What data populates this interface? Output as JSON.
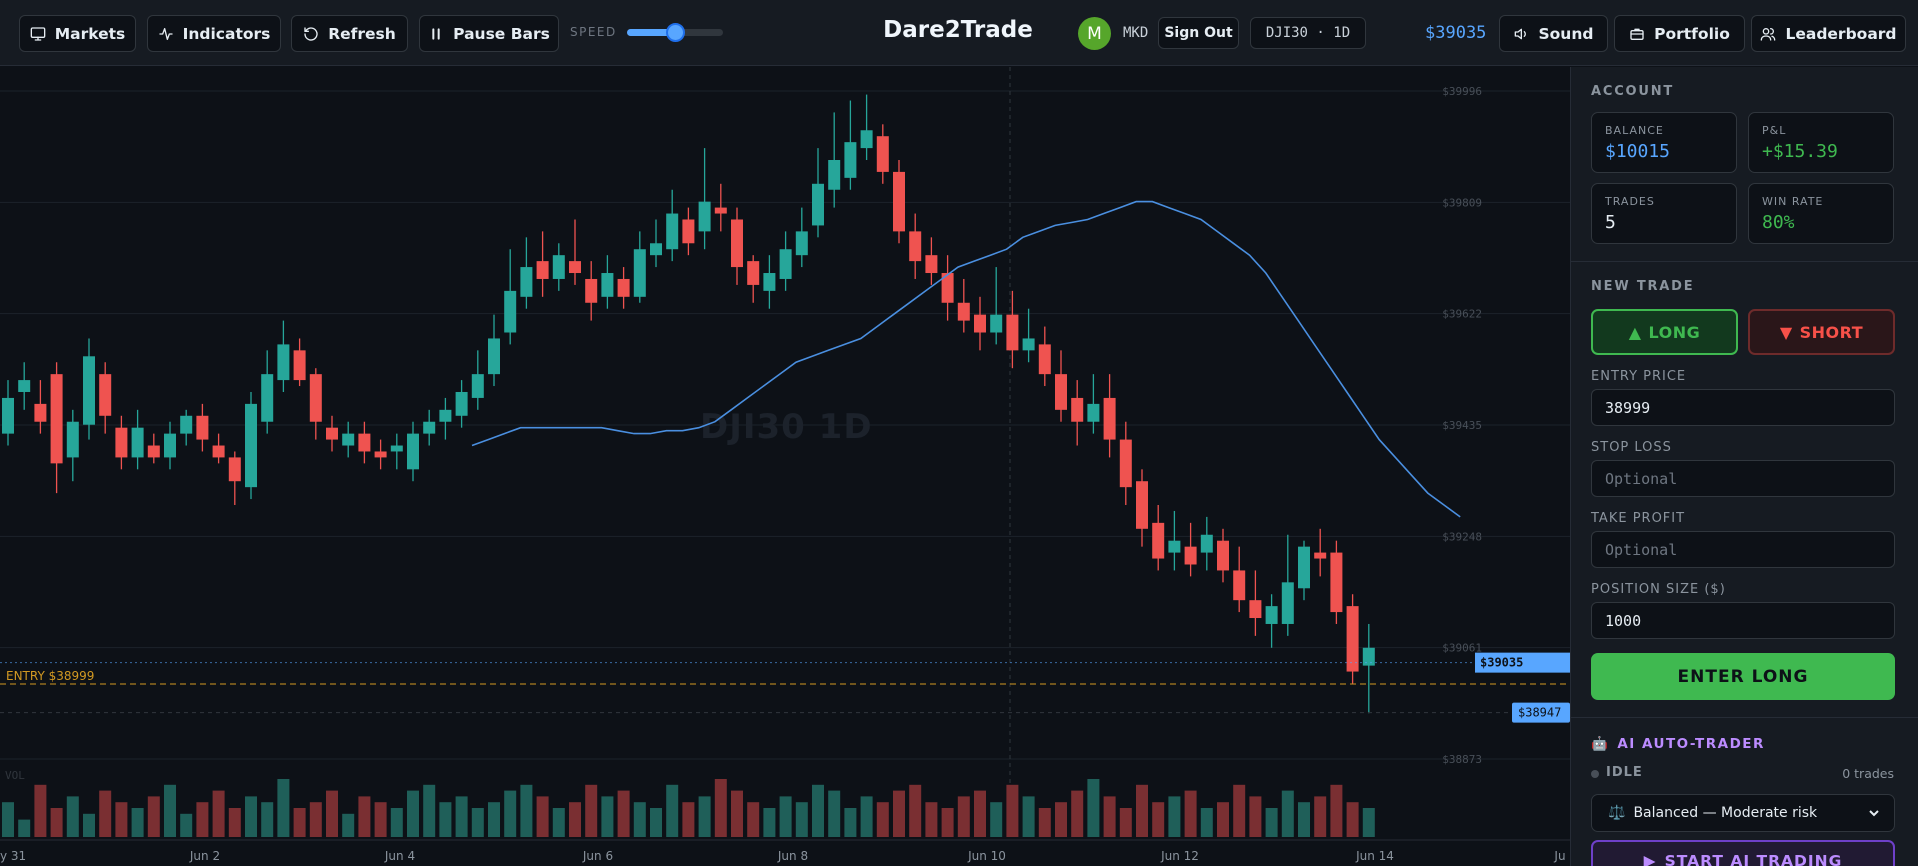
{
  "header": {
    "markets_label": "Markets",
    "indicators_label": "Indicators",
    "refresh_label": "Refresh",
    "pause_label": "Pause Bars",
    "speed_label": "SPEED",
    "speed_value": 0.5,
    "app_title": "Dare2Trade",
    "avatar_letter": "M",
    "username": "MKD",
    "signout_label": "Sign Out",
    "symbol": "DJI30 · 1D",
    "current_price": "$39035",
    "sound_label": "Sound",
    "portfolio_label": "Portfolio",
    "leaderboard_label": "Leaderboard"
  },
  "chart": {
    "watermark": "DJI30 1D",
    "entry_label": "ENTRY $38999",
    "current_price_tag": "$39035",
    "crosshair_price_tag": "$38947",
    "volume_label": "VOL",
    "colors": {
      "up": "#26a69a",
      "down": "#ef5350",
      "ma": "#4a8fe0",
      "entry": "#d29922",
      "price": "#58a6ff",
      "vol_up": "#1f5f59",
      "vol_down": "#7a2f32"
    },
    "price_ticks": [
      "$39996",
      "$39809",
      "$39622",
      "$39435",
      "$39248",
      "$39061",
      "$38873"
    ],
    "date_ticks": [
      "y 31",
      "Jun 2",
      "Jun 4",
      "Jun 6",
      "Jun 8",
      "Jun 10",
      "Jun 12",
      "Jun 14",
      "Ju"
    ]
  },
  "chart_data": {
    "type": "candlestick",
    "bars_open": [
      39420,
      39490,
      39470,
      39520,
      39380,
      39435,
      39520,
      39430,
      39380,
      39400,
      39380,
      39420,
      39450,
      39400,
      39380,
      39330,
      39440,
      39510,
      39560,
      39520,
      39430,
      39400,
      39420,
      39390,
      39390,
      39360,
      39420,
      39440,
      39450,
      39480,
      39520,
      39590,
      39650,
      39710,
      39680,
      39710,
      39680,
      39650,
      39680,
      39650,
      39720,
      39730,
      39780,
      39760,
      39800,
      39780,
      39710,
      39660,
      39680,
      39720,
      39770,
      39830,
      39850,
      39900,
      39920,
      39860,
      39760,
      39720,
      39690,
      39640,
      39620,
      39590,
      39620,
      39560,
      39570,
      39520,
      39480,
      39440,
      39480,
      39410,
      39340,
      39270,
      39220,
      39230,
      39220,
      39240,
      39190,
      39140,
      39100,
      39100,
      39160,
      39220,
      39220,
      39130,
      39030
    ],
    "bars_close": [
      39480,
      39510,
      39440,
      39370,
      39440,
      39550,
      39450,
      39380,
      39430,
      39380,
      39420,
      39450,
      39410,
      39380,
      39340,
      39470,
      39520,
      39570,
      39510,
      39440,
      39410,
      39420,
      39390,
      39380,
      39400,
      39420,
      39440,
      39460,
      39490,
      39520,
      39580,
      39660,
      39700,
      39680,
      39720,
      39690,
      39640,
      39690,
      39650,
      39730,
      39740,
      39790,
      39740,
      39810,
      39790,
      39700,
      39670,
      39690,
      39730,
      39760,
      39840,
      39880,
      39910,
      39930,
      39860,
      39760,
      39710,
      39690,
      39640,
      39610,
      39590,
      39620,
      39560,
      39580,
      39520,
      39460,
      39440,
      39470,
      39410,
      39330,
      39260,
      39210,
      39240,
      39200,
      39250,
      39190,
      39140,
      39110,
      39130,
      39170,
      39230,
      39210,
      39120,
      39020,
      39060
    ],
    "bars_high": [
      39510,
      39540,
      39510,
      39540,
      39460,
      39580,
      39540,
      39450,
      39460,
      39420,
      39440,
      39460,
      39470,
      39420,
      39390,
      39490,
      39560,
      39610,
      39580,
      39530,
      39450,
      39440,
      39440,
      39410,
      39420,
      39440,
      39460,
      39480,
      39510,
      39560,
      39620,
      39730,
      39750,
      39760,
      39740,
      39780,
      39710,
      39720,
      39700,
      39760,
      39780,
      39830,
      39800,
      39900,
      39840,
      39800,
      39720,
      39720,
      39760,
      39800,
      39900,
      39960,
      39980,
      39990,
      39940,
      39880,
      39790,
      39750,
      39720,
      39680,
      39650,
      39700,
      39660,
      39630,
      39600,
      39560,
      39510,
      39520,
      39520,
      39440,
      39360,
      39300,
      39290,
      39270,
      39280,
      39260,
      39230,
      39190,
      39150,
      39250,
      39240,
      39260,
      39240,
      39150,
      39100
    ],
    "bars_low": [
      39400,
      39460,
      39420,
      39320,
      39340,
      39410,
      39420,
      39360,
      39360,
      39370,
      39360,
      39400,
      39390,
      39370,
      39300,
      39310,
      39420,
      39490,
      39500,
      39410,
      39390,
      39380,
      39370,
      39360,
      39360,
      39340,
      39400,
      39410,
      39430,
      39460,
      39500,
      39570,
      39630,
      39650,
      39660,
      39670,
      39610,
      39630,
      39630,
      39640,
      39700,
      39710,
      39720,
      39730,
      39760,
      39670,
      39640,
      39630,
      39660,
      39700,
      39750,
      39800,
      39830,
      39880,
      39840,
      39740,
      39680,
      39670,
      39610,
      39590,
      39560,
      39570,
      39530,
      39540,
      39500,
      39440,
      39400,
      39420,
      39380,
      39300,
      39230,
      39190,
      39190,
      39180,
      39190,
      39170,
      39120,
      39080,
      39060,
      39080,
      39140,
      39180,
      39100,
      39000,
      38950
    ],
    "ma": [
      39400,
      39410,
      39420,
      39430,
      39430,
      39430,
      39430,
      39430,
      39430,
      39425,
      39420,
      39420,
      39425,
      39425,
      39430,
      39440,
      39460,
      39480,
      39500,
      39520,
      39540,
      39550,
      39560,
      39570,
      39580,
      39600,
      39620,
      39640,
      39660,
      39680,
      39700,
      39710,
      39720,
      39730,
      39750,
      39760,
      39770,
      39775,
      39780,
      39790,
      39800,
      39810,
      39810,
      39800,
      39790,
      39780,
      39760,
      39740,
      39720,
      39690,
      39650,
      39610,
      39570,
      39530,
      39490,
      39450,
      39410,
      39380,
      39350,
      39320,
      39300,
      39280
    ],
    "volume": [
      0.6,
      0.3,
      0.9,
      0.5,
      0.7,
      0.4,
      0.8,
      0.6,
      0.5,
      0.7,
      0.9,
      0.4,
      0.6,
      0.8,
      0.5,
      0.7,
      0.6,
      1.0,
      0.5,
      0.6,
      0.8,
      0.4,
      0.7,
      0.6,
      0.5,
      0.8,
      0.9,
      0.6,
      0.7,
      0.5,
      0.6,
      0.8,
      0.9,
      0.7,
      0.5,
      0.6,
      0.9,
      0.7,
      0.8,
      0.6,
      0.5,
      0.9,
      0.6,
      0.7,
      1.0,
      0.8,
      0.6,
      0.5,
      0.7,
      0.6,
      0.9,
      0.8,
      0.5,
      0.7,
      0.6,
      0.8,
      0.9,
      0.6,
      0.5,
      0.7,
      0.8,
      0.6,
      0.9,
      0.7,
      0.5,
      0.6,
      0.8,
      1.0,
      0.7,
      0.5,
      0.9,
      0.6,
      0.7,
      0.8,
      0.5,
      0.6,
      0.9,
      0.7,
      0.5,
      0.8,
      0.6,
      0.7,
      0.9,
      0.6,
      0.5
    ],
    "entry_price": 38999,
    "current_price": 39035,
    "ylim": [
      38873,
      39996
    ]
  },
  "sidebar": {
    "account_title": "ACCOUNT",
    "balance_label": "BALANCE",
    "balance_value": "$10015",
    "pnl_label": "P&L",
    "pnl_value": "+$15.39",
    "trades_label": "TRADES",
    "trades_value": "5",
    "winrate_label": "WIN RATE",
    "winrate_value": "80%",
    "new_trade_title": "NEW TRADE",
    "long_label": "LONG",
    "short_label": "SHORT",
    "entry_price_label": "ENTRY PRICE",
    "entry_price_value": "38999",
    "stop_loss_label": "STOP LOSS",
    "stop_loss_placeholder": "Optional",
    "take_profit_label": "TAKE PROFIT",
    "take_profit_placeholder": "Optional",
    "position_size_label": "POSITION SIZE ($)",
    "position_size_value": "1000",
    "enter_button_label": "ENTER LONG",
    "ai_title": "AI AUTO-TRADER",
    "ai_status": "IDLE",
    "ai_trades": "0 trades",
    "ai_mode": "Balanced — Moderate risk",
    "ai_start_label": "START AI TRADING"
  }
}
